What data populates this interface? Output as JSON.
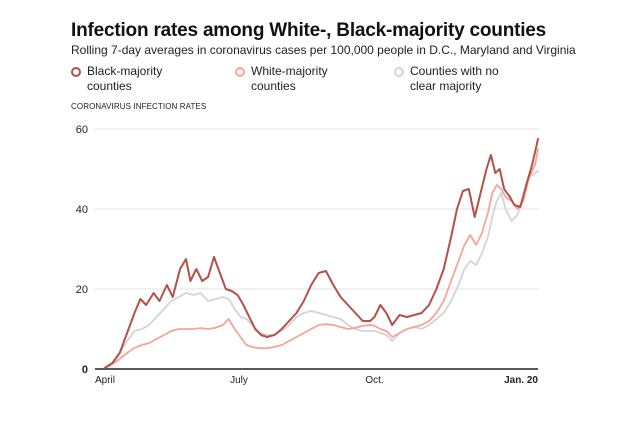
{
  "chart_data": {
    "type": "line",
    "title": "Infection rates among White-, Black-majority counties",
    "subtitle": "Rolling 7-day averages in coronavirus cases per 100,000 people in D.C., Maryland and Virginia",
    "panel_label": "CORONAVIRUS INFECTION RATES",
    "ylim": [
      0,
      60
    ],
    "y_ticks": [
      {
        "value": 0,
        "label": "0"
      },
      {
        "value": 20,
        "label": "20"
      },
      {
        "value": 40,
        "label": "40"
      },
      {
        "value": 60,
        "label": "60"
      }
    ],
    "x_ticks": [
      {
        "value": 0,
        "label": "April"
      },
      {
        "value": 91,
        "label": "July"
      },
      {
        "value": 183,
        "label": "Oct."
      },
      {
        "value": 294,
        "label": "Jan. 20"
      }
    ],
    "grid": true,
    "legend_position": "top",
    "series": [
      {
        "name": "Black-majority counties",
        "color": "#b5504a",
        "width": 2,
        "points": [
          [
            0,
            0.3
          ],
          [
            5,
            1.5
          ],
          [
            10,
            4
          ],
          [
            15,
            9
          ],
          [
            20,
            14
          ],
          [
            24,
            17.5
          ],
          [
            28,
            16
          ],
          [
            33,
            19
          ],
          [
            37,
            17
          ],
          [
            42,
            21
          ],
          [
            46,
            18
          ],
          [
            51,
            25
          ],
          [
            55,
            27.5
          ],
          [
            58,
            22
          ],
          [
            62,
            25
          ],
          [
            66,
            22
          ],
          [
            70,
            23
          ],
          [
            74,
            28
          ],
          [
            78,
            24
          ],
          [
            82,
            20
          ],
          [
            86,
            19.5
          ],
          [
            90,
            18.5
          ],
          [
            94,
            16
          ],
          [
            98,
            13
          ],
          [
            102,
            10
          ],
          [
            106,
            8.5
          ],
          [
            110,
            8
          ],
          [
            115,
            8.5
          ],
          [
            120,
            10
          ],
          [
            125,
            12
          ],
          [
            130,
            14
          ],
          [
            135,
            17
          ],
          [
            140,
            21
          ],
          [
            145,
            24
          ],
          [
            150,
            24.5
          ],
          [
            155,
            21
          ],
          [
            160,
            18
          ],
          [
            165,
            16
          ],
          [
            170,
            14
          ],
          [
            175,
            12
          ],
          [
            180,
            12
          ],
          [
            183,
            13
          ],
          [
            187,
            16
          ],
          [
            191,
            14
          ],
          [
            195,
            11
          ],
          [
            200,
            13.5
          ],
          [
            205,
            13
          ],
          [
            210,
            13.5
          ],
          [
            215,
            14
          ],
          [
            220,
            16
          ],
          [
            225,
            20
          ],
          [
            230,
            25
          ],
          [
            235,
            33
          ],
          [
            239,
            40
          ],
          [
            243,
            44.5
          ],
          [
            247,
            45
          ],
          [
            251,
            38
          ],
          [
            255,
            44
          ],
          [
            259,
            50
          ],
          [
            262,
            53.5
          ],
          [
            265,
            49
          ],
          [
            268,
            50
          ],
          [
            271,
            45
          ],
          [
            275,
            43
          ],
          [
            278,
            41
          ],
          [
            282,
            40.5
          ],
          [
            286,
            46
          ],
          [
            290,
            51
          ],
          [
            294,
            57.5
          ]
        ]
      },
      {
        "name": "White-majority counties",
        "color": "#f2a598",
        "width": 1.8,
        "points": [
          [
            0,
            0.3
          ],
          [
            5,
            1.2
          ],
          [
            10,
            2.5
          ],
          [
            15,
            4
          ],
          [
            20,
            5.3
          ],
          [
            25,
            6
          ],
          [
            30,
            6.5
          ],
          [
            35,
            7.5
          ],
          [
            40,
            8.5
          ],
          [
            45,
            9.5
          ],
          [
            50,
            10
          ],
          [
            55,
            10
          ],
          [
            60,
            10
          ],
          [
            65,
            10.2
          ],
          [
            70,
            10
          ],
          [
            75,
            10.3
          ],
          [
            80,
            11
          ],
          [
            84,
            12.5
          ],
          [
            88,
            10
          ],
          [
            92,
            8
          ],
          [
            96,
            6
          ],
          [
            100,
            5.5
          ],
          [
            105,
            5.2
          ],
          [
            110,
            5.2
          ],
          [
            115,
            5.5
          ],
          [
            120,
            6
          ],
          [
            125,
            7
          ],
          [
            130,
            8
          ],
          [
            135,
            9
          ],
          [
            140,
            10
          ],
          [
            145,
            11
          ],
          [
            150,
            11.2
          ],
          [
            155,
            11
          ],
          [
            160,
            10.5
          ],
          [
            165,
            10
          ],
          [
            170,
            10.3
          ],
          [
            175,
            10.8
          ],
          [
            180,
            11
          ],
          [
            183,
            10.8
          ],
          [
            187,
            10
          ],
          [
            191,
            9.5
          ],
          [
            195,
            8
          ],
          [
            200,
            9
          ],
          [
            205,
            10
          ],
          [
            210,
            10.5
          ],
          [
            215,
            11
          ],
          [
            220,
            12
          ],
          [
            225,
            14
          ],
          [
            230,
            17
          ],
          [
            235,
            22
          ],
          [
            240,
            27
          ],
          [
            244,
            31
          ],
          [
            248,
            33.5
          ],
          [
            252,
            31
          ],
          [
            256,
            34
          ],
          [
            260,
            39
          ],
          [
            263,
            44
          ],
          [
            266,
            46
          ],
          [
            269,
            45
          ],
          [
            272,
            43
          ],
          [
            276,
            42
          ],
          [
            280,
            40
          ],
          [
            284,
            42
          ],
          [
            288,
            48
          ],
          [
            292,
            51
          ],
          [
            294,
            55
          ]
        ]
      },
      {
        "name": "Counties with no clear majority",
        "color": "#d4d4d4",
        "width": 1.8,
        "points": [
          [
            0,
            0.3
          ],
          [
            5,
            1.5
          ],
          [
            10,
            4
          ],
          [
            15,
            7
          ],
          [
            20,
            9.5
          ],
          [
            25,
            10
          ],
          [
            30,
            11
          ],
          [
            35,
            13
          ],
          [
            40,
            15
          ],
          [
            45,
            17
          ],
          [
            50,
            18
          ],
          [
            55,
            19
          ],
          [
            60,
            18.5
          ],
          [
            65,
            19
          ],
          [
            70,
            17
          ],
          [
            75,
            17.5
          ],
          [
            80,
            18
          ],
          [
            84,
            17.5
          ],
          [
            88,
            15
          ],
          [
            92,
            13
          ],
          [
            96,
            12.5
          ],
          [
            100,
            11
          ],
          [
            105,
            9
          ],
          [
            110,
            8.5
          ],
          [
            115,
            8.5
          ],
          [
            120,
            9.5
          ],
          [
            125,
            11
          ],
          [
            130,
            13
          ],
          [
            135,
            14
          ],
          [
            140,
            14.5
          ],
          [
            145,
            14
          ],
          [
            150,
            13.5
          ],
          [
            155,
            13
          ],
          [
            160,
            12.5
          ],
          [
            165,
            11
          ],
          [
            170,
            10
          ],
          [
            175,
            9.5
          ],
          [
            180,
            9.5
          ],
          [
            183,
            9.5
          ],
          [
            187,
            9
          ],
          [
            191,
            8.5
          ],
          [
            195,
            7
          ],
          [
            200,
            9
          ],
          [
            205,
            10
          ],
          [
            210,
            10.5
          ],
          [
            215,
            10
          ],
          [
            220,
            11
          ],
          [
            225,
            12.5
          ],
          [
            230,
            14
          ],
          [
            235,
            17
          ],
          [
            240,
            21
          ],
          [
            244,
            25
          ],
          [
            248,
            27
          ],
          [
            252,
            26
          ],
          [
            256,
            29
          ],
          [
            260,
            33
          ],
          [
            263,
            38
          ],
          [
            266,
            42
          ],
          [
            269,
            44
          ],
          [
            272,
            40
          ],
          [
            276,
            37
          ],
          [
            280,
            38.5
          ],
          [
            284,
            43
          ],
          [
            288,
            48
          ],
          [
            292,
            49
          ],
          [
            294,
            49.5
          ]
        ]
      }
    ]
  }
}
